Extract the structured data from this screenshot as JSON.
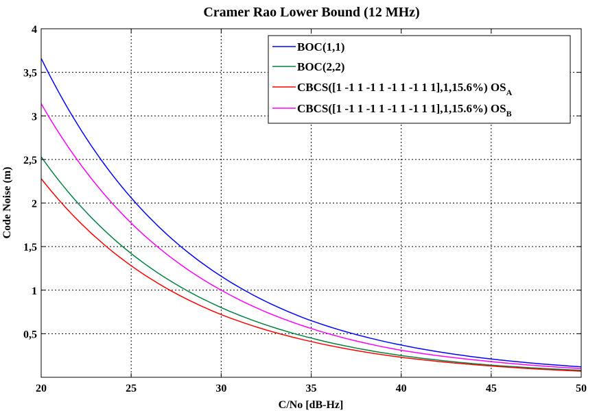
{
  "chart_data": {
    "type": "line",
    "title": "Cramer Rao Lower Bound (12 MHz)",
    "xlabel": "C/No [dB-Hz]",
    "ylabel": "Code Noise (m)",
    "xlim": [
      20,
      50
    ],
    "ylim": [
      0,
      4
    ],
    "x_ticks": [
      20,
      25,
      30,
      35,
      40,
      45,
      50
    ],
    "x_tick_labels": [
      "20",
      "25",
      "30",
      "35",
      "40",
      "45",
      "50"
    ],
    "y_ticks": [
      0.5,
      1,
      1.5,
      2,
      2.5,
      3,
      3.5,
      4
    ],
    "y_tick_labels": [
      "0,5",
      "1",
      "1,5",
      "2",
      "2,5",
      "3",
      "3,5",
      "4"
    ],
    "grid": true,
    "legend_position": "top-right",
    "x": [
      20,
      25,
      30,
      35,
      40,
      45,
      50
    ],
    "series": [
      {
        "name": "BOC(1,1)",
        "name_sub": "",
        "color": "#0000ff",
        "values": [
          3.66,
          2.06,
          1.16,
          0.65,
          0.37,
          0.21,
          0.12
        ]
      },
      {
        "name": "BOC(2,2)",
        "name_sub": "",
        "color": "#008040",
        "values": [
          2.53,
          1.42,
          0.8,
          0.45,
          0.25,
          0.14,
          0.08
        ]
      },
      {
        "name": "CBCS([1 -1 1 -1 1 -1 1 -1 1 1],1,15.6%) OS",
        "name_sub": "A",
        "color": "#ff0000",
        "values": [
          2.28,
          1.28,
          0.72,
          0.41,
          0.23,
          0.13,
          0.07
        ]
      },
      {
        "name": "CBCS([1 -1 1 -1 1 -1 1 -1 1 1],1,15.6%) OS",
        "name_sub": "B",
        "color": "#ff00ff",
        "values": [
          3.14,
          1.77,
          1.0,
          0.56,
          0.31,
          0.18,
          0.1
        ]
      }
    ]
  }
}
